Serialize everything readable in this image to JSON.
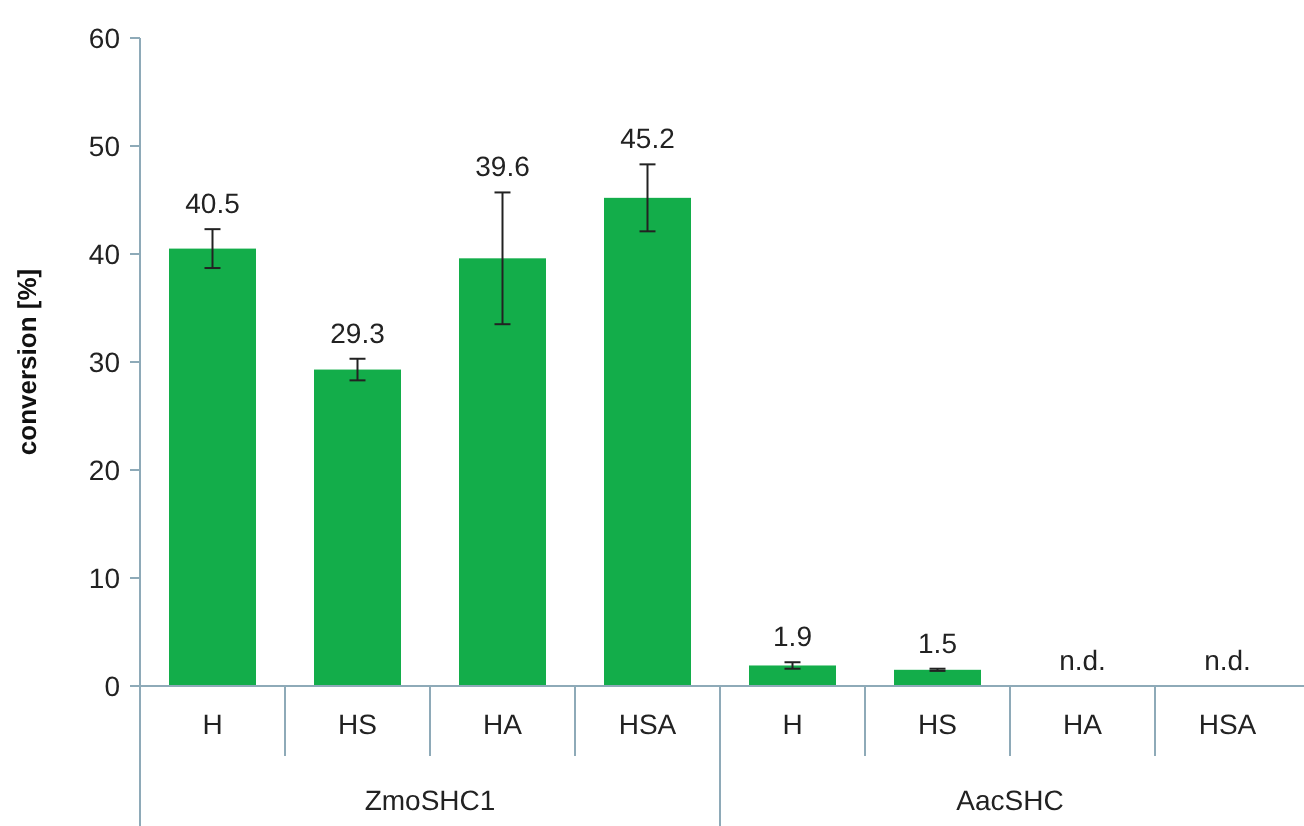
{
  "chart_data": {
    "type": "bar",
    "ylabel": "conversion [%]",
    "categories": [
      "H",
      "HS",
      "HA",
      "HSA",
      "H",
      "HS",
      "HA",
      "HSA"
    ],
    "values": [
      40.5,
      29.3,
      39.6,
      45.2,
      1.9,
      1.5,
      null,
      null
    ],
    "errors": [
      1.8,
      1.0,
      6.1,
      3.1,
      0.3,
      0.1,
      null,
      null
    ],
    "value_labels": [
      "40.5",
      "29.3",
      "39.6",
      "45.2",
      "1.9",
      "1.5",
      "n.d.",
      "n.d."
    ],
    "color": "#13ad4a",
    "ylim": [
      0,
      60
    ],
    "yticks": [
      0,
      10,
      20,
      30,
      40,
      50,
      60
    ],
    "annotations": [
      "ZmoSHC1",
      "AacSHC"
    ]
  }
}
